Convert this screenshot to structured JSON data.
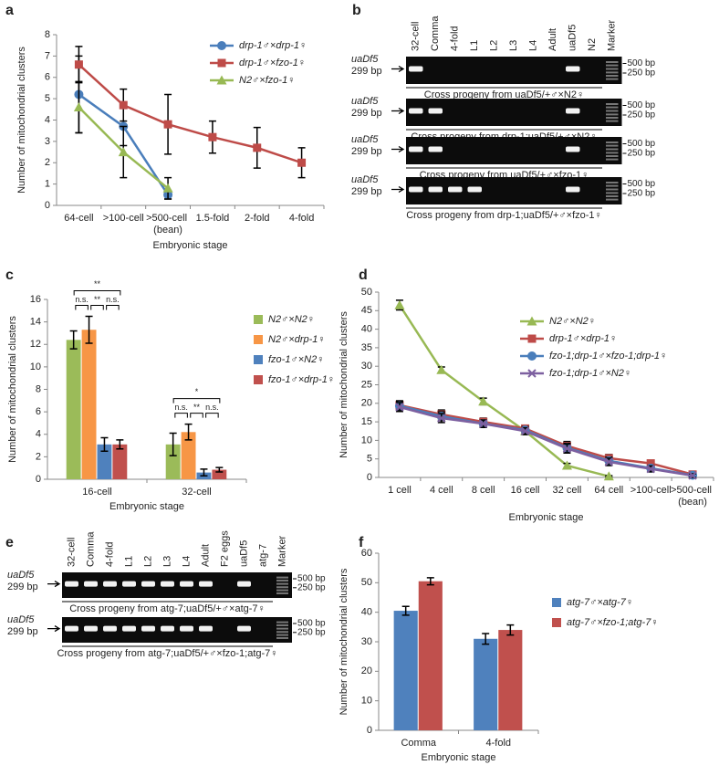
{
  "chart_data": [
    {
      "type": "line",
      "panel": "a",
      "xlabel": "Embryonic stage",
      "ylabel": "Number of mitochondrial clusters",
      "categories": [
        "64-cell",
        ">100-cell",
        ">500-cell (bean)",
        "1.5-fold",
        "2-fold",
        "4-fold"
      ],
      "ylim": [
        0,
        8
      ],
      "yticks": [
        0,
        1,
        2,
        3,
        4,
        5,
        6,
        7,
        8
      ],
      "series": [
        {
          "name": "drp-1♂×drp-1♀",
          "color": "#4a7ebb",
          "marker": "circle",
          "values": [
            5.2,
            3.7,
            0.5,
            null,
            null,
            null
          ],
          "errors": [
            1.8,
            0.9,
            0.2,
            null,
            null,
            null
          ]
        },
        {
          "name": "drp-1♂×fzo-1♀",
          "color": "#be4b48",
          "marker": "square",
          "values": [
            6.6,
            4.7,
            3.8,
            3.2,
            2.7,
            2.0
          ],
          "errors": [
            0.85,
            0.75,
            1.4,
            0.75,
            0.95,
            0.7
          ]
        },
        {
          "name": "N2♂×fzo-1♀",
          "color": "#98b954",
          "marker": "triangle",
          "values": [
            4.6,
            2.5,
            0.8,
            null,
            null,
            null
          ],
          "errors": [
            1.2,
            1.2,
            0.5,
            null,
            null,
            null
          ]
        }
      ]
    },
    {
      "type": "bar",
      "panel": "c",
      "xlabel": "Embryonic stage",
      "ylabel": "Number of mitochondrial clusters",
      "categories": [
        "16-cell",
        "32-cell"
      ],
      "ylim": [
        0,
        16
      ],
      "yticks": [
        0,
        2,
        4,
        6,
        8,
        10,
        12,
        14,
        16
      ],
      "annotations": [
        "**",
        "n.s.",
        "**",
        "n.s.",
        "*",
        "n.s.",
        "**",
        "n.s."
      ],
      "series": [
        {
          "name": "N2♂×N2♀",
          "color": "#9bbb59",
          "values": [
            12.4,
            3.1
          ],
          "errors": [
            0.8,
            1.0
          ]
        },
        {
          "name": "N2♂×drp-1♀",
          "color": "#f79646",
          "values": [
            13.3,
            4.2
          ],
          "errors": [
            1.2,
            0.7
          ]
        },
        {
          "name": "fzo-1♂×N2♀",
          "color": "#4f81bd",
          "values": [
            3.1,
            0.6
          ],
          "errors": [
            0.6,
            0.3
          ]
        },
        {
          "name": "fzo-1♂×drp-1♀",
          "color": "#c0504d",
          "values": [
            3.1,
            0.85
          ],
          "errors": [
            0.4,
            0.2
          ]
        }
      ]
    },
    {
      "type": "line",
      "panel": "d",
      "xlabel": "Embryonic stage",
      "ylabel": "Number of mitochondrial clusters",
      "categories": [
        "1 cell",
        "4 cell",
        "8 cell",
        "16 cell",
        "32 cell",
        "64 cell",
        ">100-cell",
        ">500-cell (bean)"
      ],
      "ylim": [
        0,
        50
      ],
      "yticks": [
        0,
        5,
        10,
        15,
        20,
        25,
        30,
        35,
        40,
        45,
        50
      ],
      "series": [
        {
          "name": "N2♂×N2♀",
          "color": "#98b954",
          "marker": "triangle",
          "values": [
            46.5,
            29,
            20.5,
            12.5,
            3.2,
            0.3,
            null,
            null
          ],
          "errors": [
            1.3,
            0.8,
            0.9,
            1.0,
            0.6,
            0.2,
            null,
            null
          ]
        },
        {
          "name": "drp-1♂×drp-1♀",
          "color": "#be4b48",
          "marker": "square",
          "values": [
            19.5,
            17,
            15,
            13.2,
            8.5,
            5.2,
            3.8,
            0.8
          ],
          "errors": [
            1.2,
            1.2,
            1.0,
            0.9,
            1.2,
            1.0,
            0.8,
            0.5
          ]
        },
        {
          "name": "fzo-1;drp-1♂×fzo-1;drp-1♀",
          "color": "#4a7ebb",
          "marker": "circle",
          "values": [
            19.3,
            16.5,
            14.5,
            12.8,
            8,
            4.5,
            2.5,
            0.6
          ],
          "errors": [
            1.2,
            1.2,
            1.0,
            0.9,
            1.2,
            1.0,
            0.8,
            0.5
          ]
        },
        {
          "name": "fzo-1;drp-1♂×N2♀",
          "color": "#7d60a0",
          "marker": "x",
          "values": [
            19,
            16,
            14.5,
            12.5,
            7.8,
            4.2,
            2.3,
            0.5
          ],
          "errors": [
            1.2,
            1.2,
            1.0,
            0.9,
            1.2,
            1.0,
            0.8,
            0.5
          ]
        }
      ]
    },
    {
      "type": "bar",
      "panel": "f",
      "xlabel": "Embryonic stage",
      "ylabel": "Number of mitochondrial clusters",
      "categories": [
        "Comma",
        "4-fold"
      ],
      "ylim": [
        0,
        60
      ],
      "yticks": [
        0,
        10,
        20,
        30,
        40,
        50,
        60
      ],
      "series": [
        {
          "name": "atg-7♂×atg-7♀",
          "color": "#4f81bd",
          "values": [
            40.5,
            31
          ],
          "errors": [
            1.5,
            1.8
          ]
        },
        {
          "name": "atg-7♂×fzo-1;atg-7♀",
          "color": "#c0504d",
          "values": [
            50.5,
            34
          ],
          "errors": [
            1.2,
            1.7
          ]
        }
      ]
    }
  ],
  "gel_panels": [
    {
      "panel": "b",
      "sample_label": "uaDf5",
      "size_label": "299 bp",
      "markers": [
        "500 bp",
        "250 bp"
      ],
      "lanes": [
        "32-cell",
        "Comma",
        "4-fold",
        "L1",
        "L2",
        "L3",
        "L4",
        "Adult",
        "uaDf5",
        "N2",
        "Marker"
      ],
      "gels": [
        {
          "caption": "Cross progeny from uaDf5/+♂×N2♀"
        },
        {
          "caption": "Cross progeny from drp-1;uaDf5/+♂×N2♀"
        },
        {
          "caption": "Cross progeny from uaDf5/+♂×fzo-1♀"
        },
        {
          "caption": "Cross progeny from drp-1;uaDf5/+♂×fzo-1♀"
        }
      ]
    },
    {
      "panel": "e",
      "sample_label": "uaDf5",
      "size_label": "299 bp",
      "markers": [
        "500 bp",
        "250 bp"
      ],
      "lanes": [
        "32-cell",
        "Comma",
        "4-fold",
        "L1",
        "L2",
        "L3",
        "L4",
        "Adult",
        "F2 eggs",
        "uaDf5",
        "atg-7",
        "Marker"
      ],
      "gels": [
        {
          "caption": "Cross progeny from atg-7;uaDf5/+♂×atg-7♀"
        },
        {
          "caption": "Cross progeny from atg-7;uaDf5/+♂×fzo-1;atg-7♀"
        }
      ]
    }
  ]
}
